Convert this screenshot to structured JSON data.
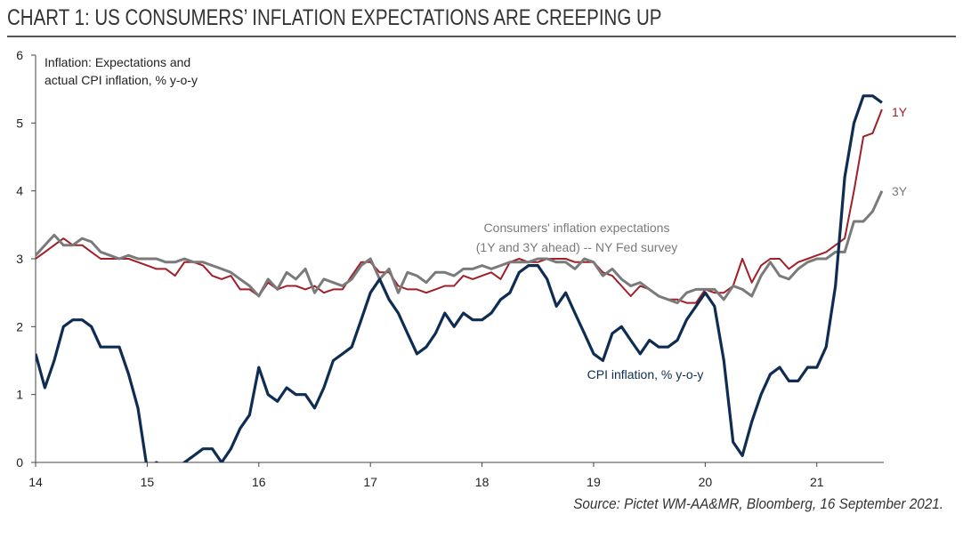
{
  "header": {
    "title": "CHART 1: US CONSUMERS’ INFLATION EXPECTATIONS ARE CREEPING UP"
  },
  "footer": {
    "source": "Source: Pictet WM-AA&MR, Bloomberg, 16 September 2021."
  },
  "colors": {
    "series_1y": "#a01f28",
    "series_3y": "#7a7a7a",
    "series_cpi": "#0f2d52",
    "axis": "#444444",
    "text": "#222222"
  },
  "chart_data": {
    "type": "line",
    "title": "",
    "ylabel_lines": [
      "Inflation: Expectations and",
      "actual CPI inflation, % y-o-y"
    ],
    "xlim": [
      14,
      21.6
    ],
    "ylim": [
      0,
      6
    ],
    "x_ticks": [
      14,
      15,
      16,
      17,
      18,
      19,
      20,
      21
    ],
    "x_tick_labels": [
      "14",
      "15",
      "16",
      "17",
      "18",
      "19",
      "20",
      "21"
    ],
    "y_ticks": [
      0,
      1,
      2,
      3,
      4,
      5,
      6
    ],
    "y_tick_labels": [
      "0",
      "1",
      "2",
      "3",
      "4",
      "5",
      "6"
    ],
    "grid": false,
    "annotations": [
      {
        "lines": [
          "Consumers' inflation  expectations",
          "(1Y and 3Y ahead)  -- NY Fed survey"
        ],
        "color": "gray"
      },
      {
        "lines": [
          "CPI inflation,  % y-o-y"
        ],
        "color": "navy"
      }
    ],
    "series": [
      {
        "name": "1Y",
        "color": "#a01f28",
        "x": [
          14.0,
          14.083,
          14.167,
          14.25,
          14.333,
          14.417,
          14.5,
          14.583,
          14.667,
          14.75,
          14.833,
          14.917,
          15.0,
          15.083,
          15.167,
          15.25,
          15.333,
          15.417,
          15.5,
          15.583,
          15.667,
          15.75,
          15.833,
          15.917,
          16.0,
          16.083,
          16.167,
          16.25,
          16.333,
          16.417,
          16.5,
          16.583,
          16.667,
          16.75,
          16.833,
          16.917,
          17.0,
          17.083,
          17.167,
          17.25,
          17.333,
          17.417,
          17.5,
          17.583,
          17.667,
          17.75,
          17.833,
          17.917,
          18.0,
          18.083,
          18.167,
          18.25,
          18.333,
          18.417,
          18.5,
          18.583,
          18.667,
          18.75,
          18.833,
          18.917,
          19.0,
          19.083,
          19.167,
          19.25,
          19.333,
          19.417,
          19.5,
          19.583,
          19.667,
          19.75,
          19.833,
          19.917,
          20.0,
          20.083,
          20.167,
          20.25,
          20.333,
          20.417,
          20.5,
          20.583,
          20.667,
          20.75,
          20.833,
          20.917,
          21.0,
          21.083,
          21.167,
          21.25,
          21.333,
          21.417,
          21.5,
          21.583
        ],
        "values": [
          3.0,
          3.1,
          3.2,
          3.3,
          3.2,
          3.2,
          3.1,
          3.0,
          3.0,
          3.0,
          3.0,
          2.95,
          2.9,
          2.85,
          2.85,
          2.75,
          2.95,
          2.95,
          2.9,
          2.75,
          2.7,
          2.75,
          2.55,
          2.55,
          2.45,
          2.65,
          2.55,
          2.6,
          2.6,
          2.55,
          2.6,
          2.5,
          2.55,
          2.55,
          2.75,
          2.95,
          2.95,
          2.8,
          2.8,
          2.6,
          2.55,
          2.55,
          2.5,
          2.55,
          2.6,
          2.6,
          2.75,
          2.7,
          2.75,
          2.8,
          2.7,
          2.95,
          3.0,
          2.95,
          2.95,
          3.0,
          3.0,
          3.0,
          2.95,
          2.95,
          2.95,
          2.8,
          2.75,
          2.6,
          2.45,
          2.6,
          2.55,
          2.45,
          2.4,
          2.4,
          2.35,
          2.35,
          2.55,
          2.5,
          2.5,
          2.6,
          3.0,
          2.65,
          2.9,
          3.0,
          3.0,
          2.85,
          2.95,
          3.0,
          3.05,
          3.1,
          3.2,
          3.3,
          4.0,
          4.8,
          4.85,
          5.2
        ]
      },
      {
        "name": "3Y",
        "color": "#7a7a7a",
        "x": [
          14.0,
          14.083,
          14.167,
          14.25,
          14.333,
          14.417,
          14.5,
          14.583,
          14.667,
          14.75,
          14.833,
          14.917,
          15.0,
          15.083,
          15.167,
          15.25,
          15.333,
          15.417,
          15.5,
          15.583,
          15.667,
          15.75,
          15.833,
          15.917,
          16.0,
          16.083,
          16.167,
          16.25,
          16.333,
          16.417,
          16.5,
          16.583,
          16.667,
          16.75,
          16.833,
          16.917,
          17.0,
          17.083,
          17.167,
          17.25,
          17.333,
          17.417,
          17.5,
          17.583,
          17.667,
          17.75,
          17.833,
          17.917,
          18.0,
          18.083,
          18.167,
          18.25,
          18.333,
          18.417,
          18.5,
          18.583,
          18.667,
          18.75,
          18.833,
          18.917,
          19.0,
          19.083,
          19.167,
          19.25,
          19.333,
          19.417,
          19.5,
          19.583,
          19.667,
          19.75,
          19.833,
          19.917,
          20.0,
          20.083,
          20.167,
          20.25,
          20.333,
          20.417,
          20.5,
          20.583,
          20.667,
          20.75,
          20.833,
          20.917,
          21.0,
          21.083,
          21.167,
          21.25,
          21.333,
          21.417,
          21.5,
          21.583
        ],
        "values": [
          3.05,
          3.2,
          3.35,
          3.2,
          3.2,
          3.3,
          3.25,
          3.1,
          3.05,
          3.0,
          3.05,
          3.0,
          3.0,
          3.0,
          2.95,
          2.95,
          3.0,
          2.95,
          2.95,
          2.9,
          2.85,
          2.8,
          2.7,
          2.6,
          2.45,
          2.7,
          2.55,
          2.8,
          2.7,
          2.85,
          2.5,
          2.7,
          2.65,
          2.6,
          2.7,
          2.9,
          3.0,
          2.7,
          2.85,
          2.5,
          2.8,
          2.75,
          2.65,
          2.8,
          2.8,
          2.75,
          2.85,
          2.85,
          2.9,
          2.85,
          2.9,
          2.95,
          2.95,
          2.95,
          3.0,
          3.0,
          2.95,
          2.95,
          2.85,
          3.0,
          2.95,
          2.75,
          2.85,
          2.7,
          2.6,
          2.65,
          2.55,
          2.45,
          2.4,
          2.35,
          2.5,
          2.55,
          2.55,
          2.55,
          2.4,
          2.6,
          2.55,
          2.45,
          2.75,
          2.95,
          2.75,
          2.7,
          2.85,
          2.95,
          3.0,
          3.0,
          3.1,
          3.1,
          3.55,
          3.55,
          3.7,
          4.0
        ]
      },
      {
        "name": "CPI inflation",
        "color": "#0f2d52",
        "x": [
          14.0,
          14.083,
          14.167,
          14.25,
          14.333,
          14.417,
          14.5,
          14.583,
          14.667,
          14.75,
          14.833,
          14.917,
          15.0,
          15.083,
          15.167,
          15.25,
          15.333,
          15.417,
          15.5,
          15.583,
          15.667,
          15.75,
          15.833,
          15.917,
          16.0,
          16.083,
          16.167,
          16.25,
          16.333,
          16.417,
          16.5,
          16.583,
          16.667,
          16.75,
          16.833,
          16.917,
          17.0,
          17.083,
          17.167,
          17.25,
          17.333,
          17.417,
          17.5,
          17.583,
          17.667,
          17.75,
          17.833,
          17.917,
          18.0,
          18.083,
          18.167,
          18.25,
          18.333,
          18.417,
          18.5,
          18.583,
          18.667,
          18.75,
          18.833,
          18.917,
          19.0,
          19.083,
          19.167,
          19.25,
          19.333,
          19.417,
          19.5,
          19.583,
          19.667,
          19.75,
          19.833,
          19.917,
          20.0,
          20.083,
          20.167,
          20.25,
          20.333,
          20.417,
          20.5,
          20.583,
          20.667,
          20.75,
          20.833,
          20.917,
          21.0,
          21.083,
          21.167,
          21.25,
          21.333,
          21.417,
          21.5,
          21.583
        ],
        "values": [
          1.6,
          1.1,
          1.5,
          2.0,
          2.1,
          2.1,
          2.0,
          1.7,
          1.7,
          1.7,
          1.3,
          0.8,
          -0.1,
          0.0,
          -0.1,
          -0.1,
          0.0,
          0.1,
          0.2,
          0.2,
          0.0,
          0.2,
          0.5,
          0.7,
          1.4,
          1.0,
          0.9,
          1.1,
          1.0,
          1.0,
          0.8,
          1.1,
          1.5,
          1.6,
          1.7,
          2.1,
          2.5,
          2.7,
          2.4,
          2.2,
          1.9,
          1.6,
          1.7,
          1.9,
          2.2,
          2.0,
          2.2,
          2.1,
          2.1,
          2.2,
          2.4,
          2.5,
          2.8,
          2.9,
          2.9,
          2.7,
          2.3,
          2.5,
          2.2,
          1.9,
          1.6,
          1.5,
          1.9,
          2.0,
          1.8,
          1.6,
          1.8,
          1.7,
          1.7,
          1.8,
          2.1,
          2.3,
          2.5,
          2.3,
          1.5,
          0.3,
          0.1,
          0.6,
          1.0,
          1.3,
          1.4,
          1.2,
          1.2,
          1.4,
          1.4,
          1.7,
          2.6,
          4.2,
          5.0,
          5.4,
          5.4,
          5.3
        ]
      }
    ]
  }
}
